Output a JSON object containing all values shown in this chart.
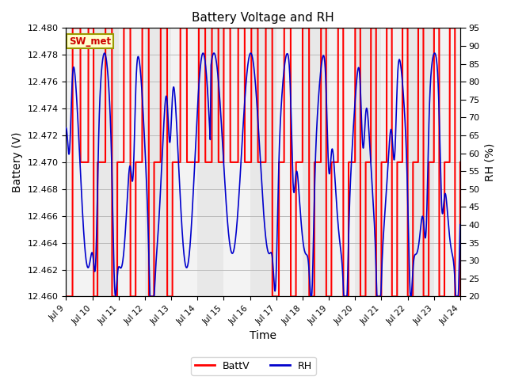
{
  "title": "Battery Voltage and RH",
  "xlabel": "Time",
  "ylabel_left": "Battery (V)",
  "ylabel_right": "RH (%)",
  "annotation_text": "SW_met",
  "annotation_bg": "#ffffcc",
  "annotation_border": "#999900",
  "annotation_text_color": "#cc0000",
  "bg_color": "#ffffff",
  "plot_bg_color": "#e8e8e8",
  "batt_color": "#ff0000",
  "rh_color": "#0000cc",
  "ylim_left": [
    12.46,
    12.48
  ],
  "ylim_right": [
    20,
    95
  ],
  "yticks_left": [
    12.46,
    12.462,
    12.464,
    12.466,
    12.468,
    12.47,
    12.472,
    12.474,
    12.476,
    12.478,
    12.48
  ],
  "yticks_right": [
    20,
    25,
    30,
    35,
    40,
    45,
    50,
    55,
    60,
    65,
    70,
    75,
    80,
    85,
    90,
    95
  ],
  "x_start": 9.0,
  "x_end": 24.0,
  "xticks": [
    9,
    10,
    11,
    12,
    13,
    14,
    15,
    16,
    17,
    18,
    19,
    20,
    21,
    22,
    23,
    24
  ],
  "xticklabels": [
    "Jul 9",
    "Jul 10",
    "Jul 11",
    "Jul 12",
    "Jul 13",
    "Jul 14",
    "Jul 15",
    "Jul 16",
    "Jul 17",
    "Jul 18",
    "Jul 19",
    "Jul 20",
    "Jul 21",
    "Jul 22",
    "Jul 23",
    "Jul 24"
  ],
  "legend_batt_label": "BattV",
  "legend_rh_label": "RH"
}
